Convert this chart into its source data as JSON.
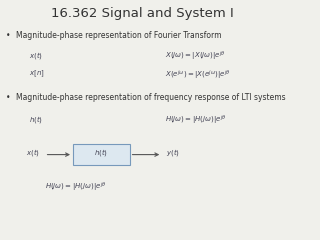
{
  "title": "16.362 Signal and System I",
  "title_fontsize": 9.5,
  "bg_color": "#f0f0eb",
  "bullet1": "Magnitude-phase representation of Fourier Transform",
  "bullet2": "Magnitude-phase representation of frequency response of LTI systems",
  "text_color": "#333333",
  "math_color": "#444455",
  "bullet_fontsize": 5.5,
  "label_fontsize": 5.0,
  "math_fontsize": 5.0,
  "xt_label": "$x(t)$",
  "xn_label": "$x[n]$",
  "ht_label": "$h(t)$",
  "xt_formula": "$X(j\\omega) = |X(j\\omega)|e^{j\\theta}$",
  "xejw_formula": "$X(e^{j\\omega}) = |X(e^{j\\omega})|e^{j\\theta}$",
  "ht_formula": "$H(j\\omega) = |H(j\\omega)|e^{j\\theta}$",
  "block_formula": "$H(j\\omega) = |H(j\\omega)|e^{j\\theta}$",
  "block_xt": "$x(t)$",
  "block_ht": "$h(t)$",
  "block_yt": "$y(t)$",
  "block_edge_color": "#7799bb",
  "block_face_color": "#dde8f0",
  "arrow_color": "#555555"
}
